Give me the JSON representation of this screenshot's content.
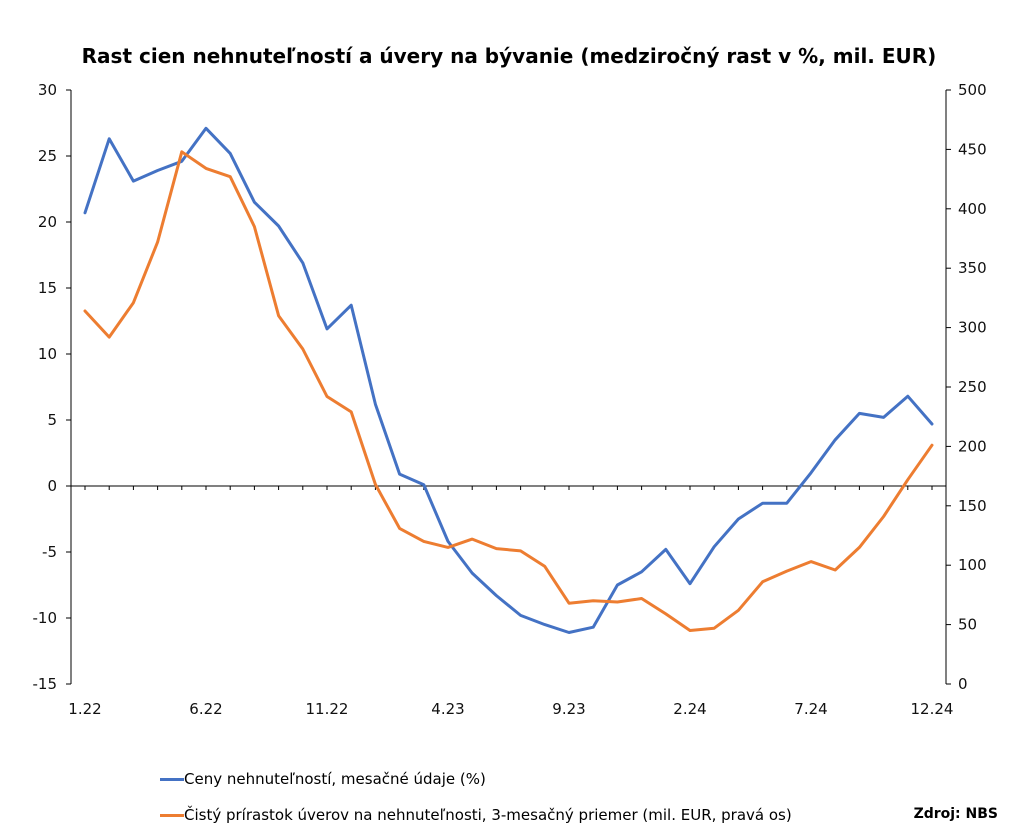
{
  "chart_data": {
    "type": "line",
    "title": "Rast cien nehnuteľností a úvery na bývanie (medziročný rast v %, mil. EUR)",
    "x_categories": [
      "1.22",
      "2.22",
      "3.22",
      "4.22",
      "5.22",
      "6.22",
      "7.22",
      "8.22",
      "9.22",
      "10.22",
      "11.22",
      "12.22",
      "1.23",
      "2.23",
      "3.23",
      "4.23",
      "5.23",
      "6.23",
      "7.23",
      "8.23",
      "9.23",
      "10.23",
      "11.23",
      "12.23",
      "1.24",
      "2.24",
      "3.24",
      "4.24",
      "5.24",
      "6.24",
      "7.24",
      "8.24",
      "9.24",
      "10.24",
      "11.24",
      "12.24"
    ],
    "x_tick_labels": [
      "1.22",
      "6.22",
      "11.22",
      "4.23",
      "9.23",
      "2.24",
      "7.24",
      "12.24"
    ],
    "y_left": {
      "min": -15,
      "max": 30,
      "ticks": [
        "-15",
        "-10",
        "-5",
        "0",
        "5",
        "10",
        "15",
        "20",
        "25",
        "30"
      ]
    },
    "y_right": {
      "min": 0,
      "max": 500,
      "ticks": [
        "0",
        "50",
        "100",
        "150",
        "200",
        "250",
        "300",
        "350",
        "400",
        "450",
        "500"
      ]
    },
    "series": [
      {
        "name": "Ceny nehnuteľností, mesačné údaje (%)",
        "axis": "left",
        "color": "#4472C4",
        "values": [
          20.7,
          26.3,
          23.1,
          23.9,
          24.6,
          27.1,
          25.2,
          21.5,
          19.7,
          16.9,
          11.9,
          13.7,
          6.2,
          0.9,
          0.1,
          -4.2,
          -6.6,
          -8.3,
          -9.8,
          -10.5,
          -11.1,
          -10.7,
          -7.5,
          -6.5,
          -4.8,
          -7.4,
          -4.6,
          -2.5,
          -1.3,
          -1.3,
          1.0,
          3.5,
          5.5,
          5.2,
          6.8,
          4.7
        ]
      },
      {
        "name": "Čistý prírastok úverov na nehnuteľnosti, 3-mesačný priemer (mil. EUR, pravá os)",
        "axis": "right",
        "color": "#ED7D31",
        "values": [
          314,
          292,
          321,
          372,
          448,
          434,
          427,
          385,
          310,
          282,
          242,
          229,
          168,
          131,
          120,
          115,
          122,
          114,
          112,
          99,
          68,
          70,
          69,
          72,
          59,
          45,
          47,
          62,
          86,
          95,
          103,
          96,
          115,
          141,
          172,
          201
        ]
      }
    ],
    "source": "Zdroj: NBS"
  }
}
